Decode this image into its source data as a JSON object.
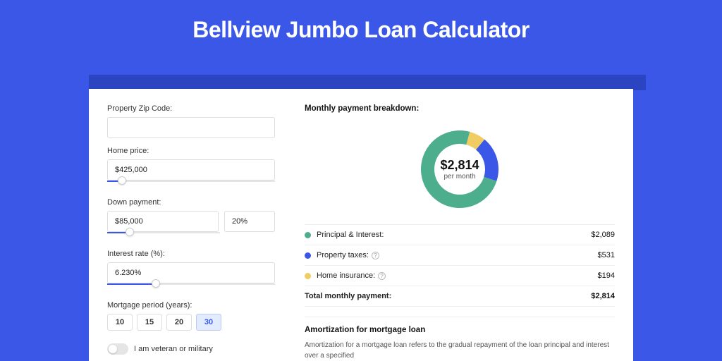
{
  "title": "Bellview Jumbo Loan Calculator",
  "colors": {
    "page_bg": "#3a57e8",
    "shadow": "#2a44c2",
    "card_bg": "#ffffff",
    "accent": "#3a57e8",
    "border": "#dddddd",
    "text": "#222222"
  },
  "form": {
    "zip_label": "Property Zip Code:",
    "zip_value": "",
    "home_price_label": "Home price:",
    "home_price_value": "$425,000",
    "home_price_slider_pct": 9,
    "down_payment_label": "Down payment:",
    "down_payment_value": "$85,000",
    "down_payment_percent": "20%",
    "down_payment_slider_pct": 20,
    "rate_label": "Interest rate (%):",
    "rate_value": "6.230%",
    "rate_slider_pct": 29,
    "period_label": "Mortgage period (years):",
    "periods": [
      "10",
      "15",
      "20",
      "30"
    ],
    "period_selected": "30",
    "veteran_label": "I am veteran or military",
    "veteran_on": false
  },
  "breakdown": {
    "title": "Monthly payment breakdown:",
    "center_amount": "$2,814",
    "center_sub": "per month",
    "donut": {
      "radius": 55,
      "inner_radius": 36,
      "start_angle_deg": -75,
      "segments": [
        {
          "key": "home_insurance",
          "value": 194,
          "color": "#f0cd62"
        },
        {
          "key": "property_taxes",
          "value": 531,
          "color": "#3a57e8"
        },
        {
          "key": "principal_interest",
          "value": 2089,
          "color": "#4cae8d"
        }
      ]
    },
    "rows": [
      {
        "dot": "#4cae8d",
        "label": "Principal & Interest:",
        "info": false,
        "value": "$2,089"
      },
      {
        "dot": "#3a57e8",
        "label": "Property taxes:",
        "info": true,
        "value": "$531"
      },
      {
        "dot": "#f0cd62",
        "label": "Home insurance:",
        "info": true,
        "value": "$194"
      }
    ],
    "total_label": "Total monthly payment:",
    "total_value": "$2,814"
  },
  "amort": {
    "title": "Amortization for mortgage loan",
    "text": "Amortization for a mortgage loan refers to the gradual repayment of the loan principal and interest over a specified"
  }
}
